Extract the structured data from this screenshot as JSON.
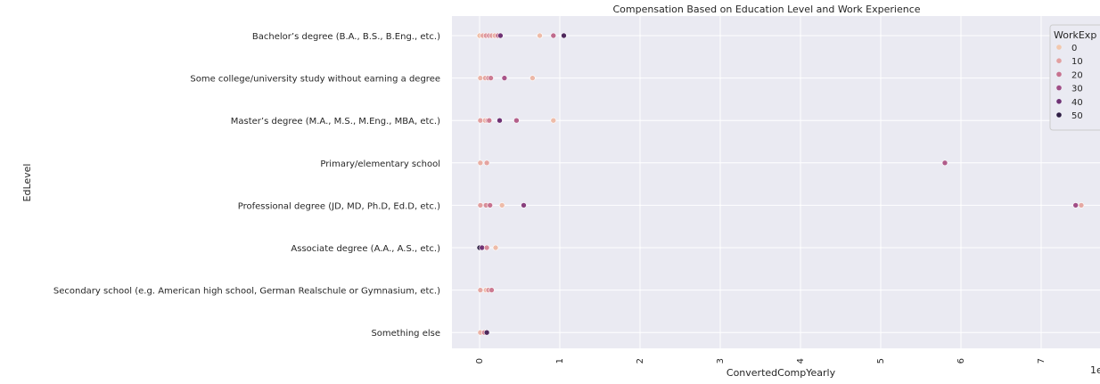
{
  "chart_data": {
    "type": "scatter",
    "title": "Compensation Based on Education Level and Work Experience",
    "xlabel": "ConvertedCompYearly",
    "ylabel": "EdLevel",
    "x_offset_label": "1e",
    "xlim": [
      -0.35,
      7.7
    ],
    "x_ticks": [
      0,
      1,
      2,
      3,
      4,
      5,
      6,
      7
    ],
    "x_tick_labels": [
      "0",
      "1",
      "2",
      "3",
      "4",
      "5",
      "6",
      "7"
    ],
    "grid": true,
    "categories": [
      "Bachelor’s degree (B.A., B.S., B.Eng., etc.)",
      "Some college/university study without earning a degree",
      "Master’s degree (M.A., M.S., M.Eng., MBA, etc.)",
      "Primary/elementary school",
      "Professional degree (JD, MD, Ph.D, Ed.D, etc.)",
      "Associate degree (A.A., A.S., etc.)",
      "Secondary school (e.g. American high school, German Realschule or Gymnasium, etc.)",
      "Something else"
    ],
    "hue": "WorkExp",
    "legend": {
      "title": "WorkExp",
      "placement": "top-right",
      "entries": [
        {
          "label": "0",
          "value": 0
        },
        {
          "label": "10",
          "value": 10
        },
        {
          "label": "20",
          "value": 20
        },
        {
          "label": "30",
          "value": 30
        },
        {
          "label": "40",
          "value": 40
        },
        {
          "label": "50",
          "value": 50
        }
      ]
    },
    "color_scale": [
      "#f3c8ad",
      "#e2a0a0",
      "#c7728f",
      "#a14e87",
      "#6f3274",
      "#2d1d43"
    ],
    "points": [
      {
        "category": 0,
        "x": 0.0,
        "workexp": 2
      },
      {
        "category": 0,
        "x": 0.04,
        "workexp": 8
      },
      {
        "category": 0,
        "x": 0.08,
        "workexp": 12
      },
      {
        "category": 0,
        "x": 0.12,
        "workexp": 15
      },
      {
        "category": 0,
        "x": 0.15,
        "workexp": 10
      },
      {
        "category": 0,
        "x": 0.19,
        "workexp": 6
      },
      {
        "category": 0,
        "x": 0.23,
        "workexp": 20
      },
      {
        "category": 0,
        "x": 0.26,
        "workexp": 40
      },
      {
        "category": 0,
        "x": 0.75,
        "workexp": 3
      },
      {
        "category": 0,
        "x": 0.92,
        "workexp": 22
      },
      {
        "category": 0,
        "x": 1.05,
        "workexp": 45
      },
      {
        "category": 1,
        "x": 0.01,
        "workexp": 5
      },
      {
        "category": 1,
        "x": 0.07,
        "workexp": 8
      },
      {
        "category": 1,
        "x": 0.11,
        "workexp": 14
      },
      {
        "category": 1,
        "x": 0.14,
        "workexp": 18
      },
      {
        "category": 1,
        "x": 0.31,
        "workexp": 28
      },
      {
        "category": 1,
        "x": 0.66,
        "workexp": 4
      },
      {
        "category": 2,
        "x": 0.01,
        "workexp": 10
      },
      {
        "category": 2,
        "x": 0.07,
        "workexp": 6
      },
      {
        "category": 2,
        "x": 0.1,
        "workexp": 12
      },
      {
        "category": 2,
        "x": 0.12,
        "workexp": 18
      },
      {
        "category": 2,
        "x": 0.25,
        "workexp": 40
      },
      {
        "category": 2,
        "x": 0.46,
        "workexp": 25
      },
      {
        "category": 2,
        "x": 0.92,
        "workexp": 3
      },
      {
        "category": 3,
        "x": 0.01,
        "workexp": 6
      },
      {
        "category": 3,
        "x": 0.09,
        "workexp": 9
      },
      {
        "category": 3,
        "x": 5.8,
        "workexp": 26
      },
      {
        "category": 4,
        "x": 0.01,
        "workexp": 10
      },
      {
        "category": 4,
        "x": 0.08,
        "workexp": 14
      },
      {
        "category": 4,
        "x": 0.13,
        "workexp": 20
      },
      {
        "category": 4,
        "x": 0.28,
        "workexp": 3
      },
      {
        "category": 4,
        "x": 0.55,
        "workexp": 35
      },
      {
        "category": 4,
        "x": 7.43,
        "workexp": 30
      },
      {
        "category": 4,
        "x": 7.5,
        "workexp": 8
      },
      {
        "category": 5,
        "x": 0.0,
        "workexp": 50
      },
      {
        "category": 5,
        "x": 0.03,
        "workexp": 40
      },
      {
        "category": 5,
        "x": 0.09,
        "workexp": 15
      },
      {
        "category": 5,
        "x": 0.2,
        "workexp": 3
      },
      {
        "category": 6,
        "x": 0.01,
        "workexp": 8
      },
      {
        "category": 6,
        "x": 0.08,
        "workexp": 4
      },
      {
        "category": 6,
        "x": 0.11,
        "workexp": 12
      },
      {
        "category": 6,
        "x": 0.15,
        "workexp": 18
      },
      {
        "category": 7,
        "x": 0.01,
        "workexp": 5
      },
      {
        "category": 7,
        "x": 0.06,
        "workexp": 15
      },
      {
        "category": 7,
        "x": 0.09,
        "workexp": 45
      }
    ]
  }
}
